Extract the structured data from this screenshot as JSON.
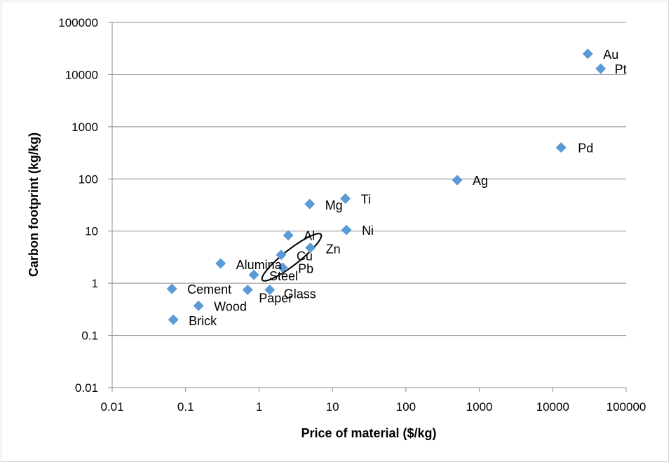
{
  "chart_data": {
    "type": "scatter",
    "title": "",
    "xlabel": "Price of material ($/kg)",
    "ylabel": "Carbon footprint (kg/kg)",
    "xscale": "log",
    "yscale": "log",
    "xlim": [
      0.01,
      100000
    ],
    "ylim": [
      0.01,
      100000
    ],
    "x_ticks": [
      "0.01",
      "0.1",
      "1",
      "10",
      "100",
      "1000",
      "10000",
      "100000"
    ],
    "y_ticks": [
      "0.01",
      "0.1",
      "1",
      "10",
      "100",
      "1000",
      "10000",
      "100000"
    ],
    "grid": "horizontal",
    "legend": "none",
    "marker_color": "#5b9bd5",
    "annotation": "ellipse around Cu, Pb and Steel",
    "points": [
      {
        "label": "Au",
        "x": 30000,
        "y": 25000
      },
      {
        "label": "Pt",
        "x": 45000,
        "y": 13000
      },
      {
        "label": "Pd",
        "x": 13000,
        "y": 400
      },
      {
        "label": "Ag",
        "x": 500,
        "y": 95
      },
      {
        "label": "Ti",
        "x": 15,
        "y": 42
      },
      {
        "label": "Mg",
        "x": 4.9,
        "y": 33
      },
      {
        "label": "Ni",
        "x": 15.5,
        "y": 10.5
      },
      {
        "label": "Al",
        "x": 2.5,
        "y": 8.3
      },
      {
        "label": "Zn",
        "x": 5,
        "y": 4.8
      },
      {
        "label": "Cu",
        "x": 2,
        "y": 3.5
      },
      {
        "label": "Alumina",
        "x": 0.3,
        "y": 2.4
      },
      {
        "label": "Pb",
        "x": 2.1,
        "y": 2
      },
      {
        "label": "Steel",
        "x": 0.85,
        "y": 1.45
      },
      {
        "label": "Cement",
        "x": 0.065,
        "y": 0.78
      },
      {
        "label": "Paper",
        "x": 0.7,
        "y": 0.75
      },
      {
        "label": "Glass",
        "x": 1.4,
        "y": 0.75
      },
      {
        "label": "Wood",
        "x": 0.15,
        "y": 0.37
      },
      {
        "label": "Brick",
        "x": 0.068,
        "y": 0.2
      }
    ]
  }
}
